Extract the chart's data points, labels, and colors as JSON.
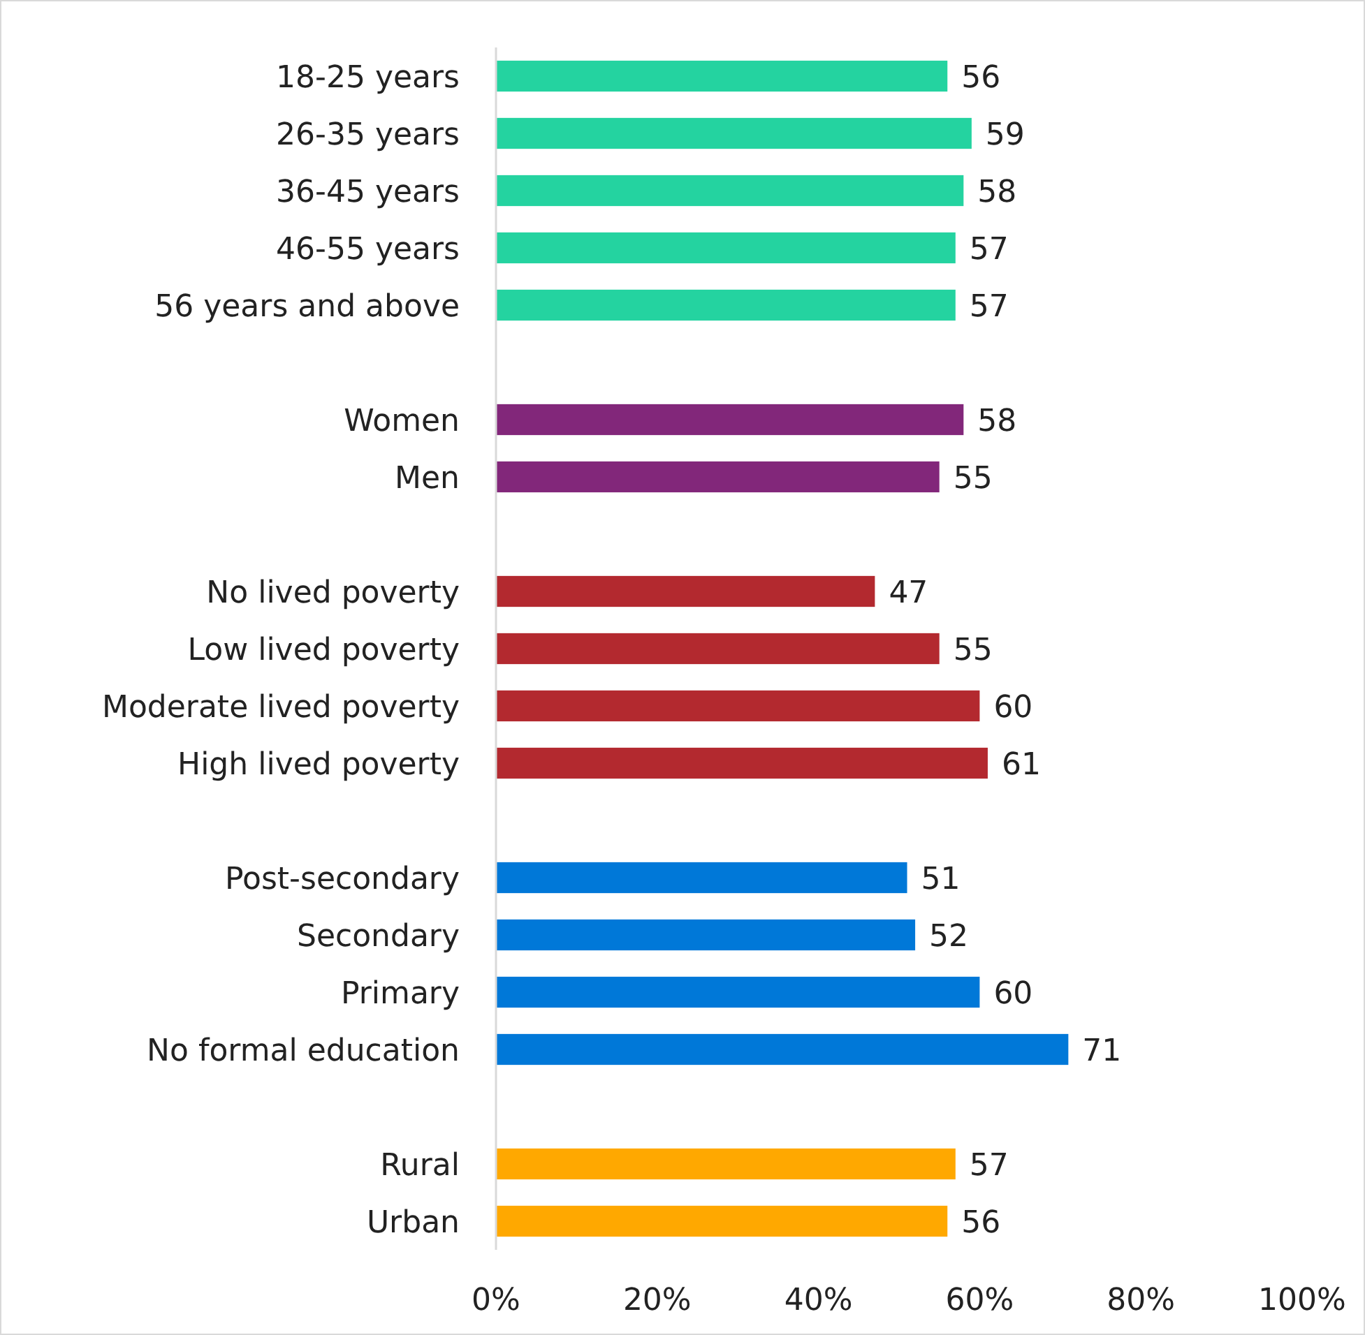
{
  "chart_data": {
    "type": "bar",
    "orientation": "horizontal",
    "data_labels": true,
    "grid": false,
    "categories": [
      "18-25 years",
      "26-35 years",
      "36-45 years",
      "46-55 years",
      "56 years and above",
      null,
      "Women",
      "Men",
      null,
      "No lived poverty",
      "Low lived poverty",
      "Moderate lived poverty",
      "High lived poverty",
      null,
      "Post-secondary",
      "Secondary",
      "Primary",
      "No formal education",
      null,
      "Rural",
      "Urban"
    ],
    "series": [
      {
        "color": "#24d3a0",
        "values": [
          56,
          59,
          58,
          57,
          57,
          null,
          null,
          null,
          null,
          null,
          null,
          null,
          null,
          null,
          null,
          null,
          null,
          null,
          null,
          null,
          null
        ]
      },
      {
        "color": "#82277a",
        "values": [
          null,
          null,
          null,
          null,
          null,
          null,
          58,
          55,
          null,
          null,
          null,
          null,
          null,
          null,
          null,
          null,
          null,
          null,
          null,
          null,
          null
        ]
      },
      {
        "color": "#b3292f",
        "values": [
          null,
          null,
          null,
          null,
          null,
          null,
          null,
          null,
          null,
          47,
          55,
          60,
          61,
          null,
          null,
          null,
          null,
          null,
          null,
          null,
          null
        ]
      },
      {
        "color": "#0078d8",
        "values": [
          null,
          null,
          null,
          null,
          null,
          null,
          null,
          null,
          null,
          null,
          null,
          null,
          null,
          null,
          51,
          52,
          60,
          71,
          null,
          null,
          null
        ]
      },
      {
        "color": "#ffa800",
        "values": [
          null,
          null,
          null,
          null,
          null,
          null,
          null,
          null,
          null,
          null,
          null,
          null,
          null,
          null,
          null,
          null,
          null,
          null,
          null,
          57,
          56
        ]
      }
    ],
    "xlim": [
      0,
      100
    ],
    "xticks": [
      {
        "value": 0,
        "label": "0%"
      },
      {
        "value": 20,
        "label": "20%"
      },
      {
        "value": 40,
        "label": "40%"
      },
      {
        "value": 60,
        "label": "60%"
      },
      {
        "value": 80,
        "label": "80%"
      },
      {
        "value": 100,
        "label": "100%"
      }
    ]
  }
}
